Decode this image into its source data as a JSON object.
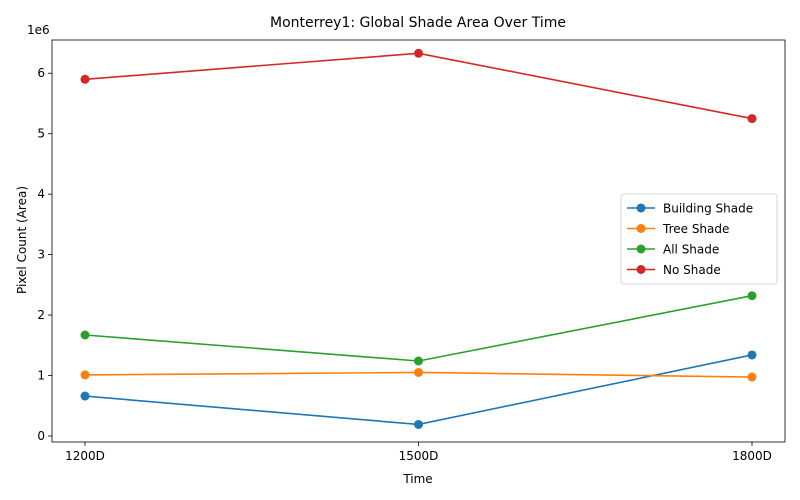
{
  "chart_data": {
    "type": "line",
    "title": "Monterrey1: Global Shade Area Over Time",
    "xlabel": "Time",
    "ylabel": "Pixel Count (Area)",
    "y_offset_text": "1e6",
    "categories": [
      "1200D",
      "1500D",
      "1800D"
    ],
    "y_ticks": [
      0,
      1,
      2,
      3,
      4,
      5,
      6
    ],
    "ylim": [
      -0.1,
      6.55
    ],
    "y_scale_factor": 1000000,
    "grid": false,
    "legend_position": "center-right",
    "series": [
      {
        "name": "Building Shade",
        "color": "#1f77b4",
        "values": [
          660000,
          190000,
          1340000
        ]
      },
      {
        "name": "Tree Shade",
        "color": "#ff7f0e",
        "values": [
          1010000,
          1050000,
          975000
        ]
      },
      {
        "name": "All Shade",
        "color": "#2ca02c",
        "values": [
          1670000,
          1240000,
          2320000
        ]
      },
      {
        "name": "No Shade",
        "color": "#d62728",
        "values": [
          5900000,
          6330000,
          5250000
        ]
      }
    ]
  }
}
